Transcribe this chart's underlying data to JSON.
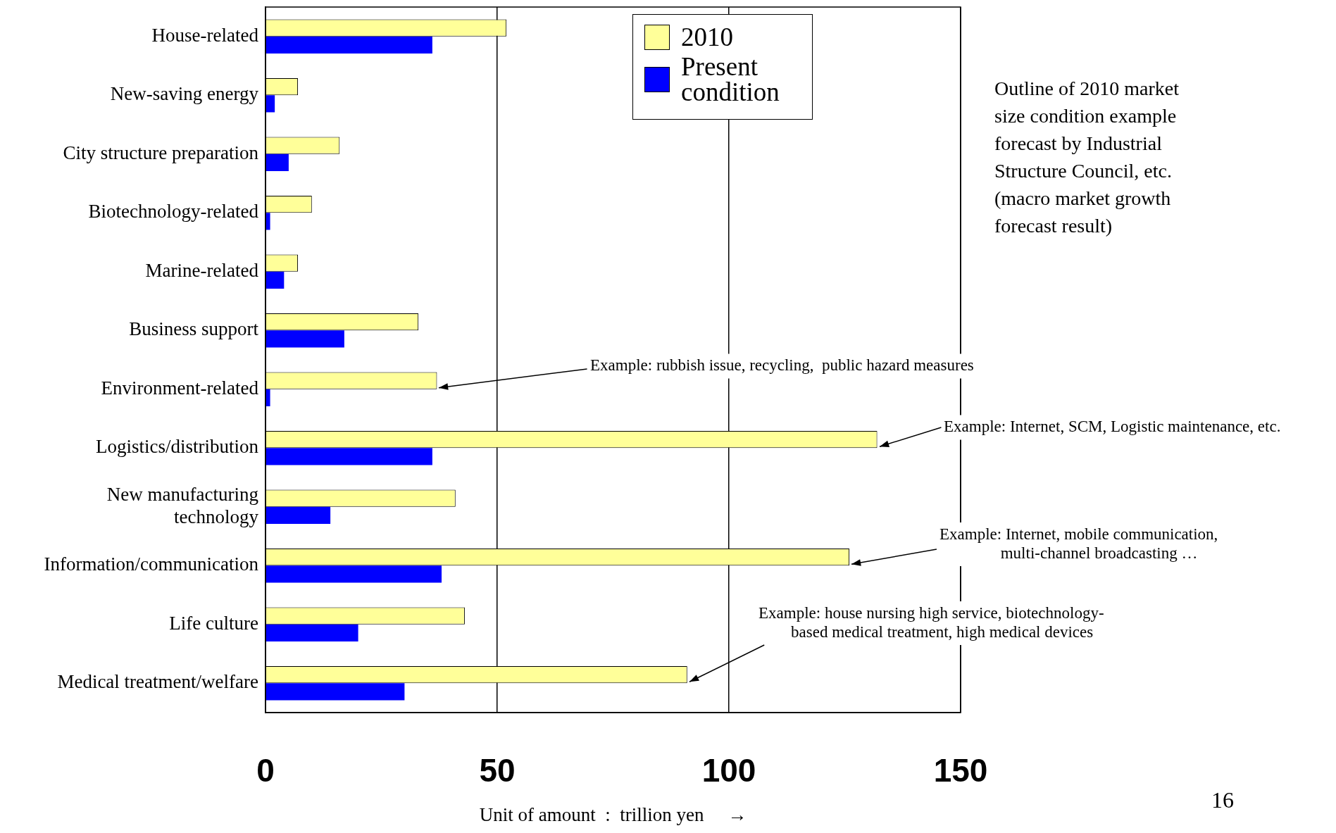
{
  "chart_data": {
    "type": "bar",
    "orientation": "horizontal",
    "xlabel": "Unit of amount  :  trillion yen     →",
    "categories": [
      "House-related",
      "New-saving energy",
      "City structure preparation",
      "Biotechnology-related",
      "Marine-related",
      "Business support",
      "Environment-related",
      "Logistics/distribution",
      "New manufacturing\ntechnology",
      "Information/communication",
      "Life culture",
      "Medical treatment/welfare"
    ],
    "series": [
      {
        "name": "2010",
        "color": "#ffff99",
        "values": [
          52,
          7,
          16,
          10,
          7,
          33,
          37,
          132,
          41,
          126,
          43,
          91
        ]
      },
      {
        "name": "Present condition",
        "color": "#0000ff",
        "values": [
          36,
          2,
          5,
          1,
          4,
          17,
          1,
          36,
          14,
          38,
          20,
          30
        ]
      }
    ],
    "xlim": [
      0,
      150
    ],
    "xticks": [
      0,
      50,
      100,
      150
    ],
    "grid": "x",
    "legend": "top",
    "annotations": [
      {
        "text": "Example: rubbish issue, recycling,  public hazard measures",
        "x": 37,
        "y": "Environment-related"
      },
      {
        "text": "Example: Internet, SCM, Logistic maintenance, etc.",
        "x": 132,
        "y": "Logistics/distribution"
      },
      {
        "text": "Example: Internet, mobile communication,\nmulti-channel broadcasting …",
        "x": 126,
        "y": "Information/communication"
      },
      {
        "text": "Example: house nursing high service, biotechnology-\nbased medical treatment, high medical devices",
        "x": 91,
        "y": "Medical treatment/welfare"
      },
      "Outline of 2010 market size condition example forecast by Industrial Structure Council, etc. (macro market growth forecast result)",
      "16"
    ]
  }
}
